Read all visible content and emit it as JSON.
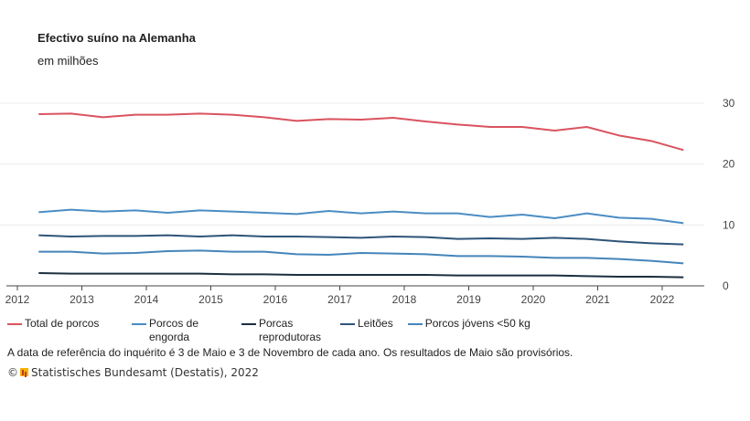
{
  "chart_data": {
    "type": "line",
    "title": "Efectivo suíno na Alemanha",
    "subtitle": "em milhões",
    "x": [
      2012.33,
      2012.83,
      2013.33,
      2013.83,
      2014.33,
      2014.83,
      2015.33,
      2015.83,
      2016.33,
      2016.83,
      2017.33,
      2017.83,
      2018.33,
      2018.83,
      2019.33,
      2019.83,
      2020.33,
      2020.83,
      2021.33,
      2021.83,
      2022.33
    ],
    "xlim": [
      2012,
      2023
    ],
    "xticks": [
      "2012",
      "2013",
      "2014",
      "2015",
      "2016",
      "2017",
      "2018",
      "2019",
      "2020",
      "2021",
      "2022"
    ],
    "ylim": [
      0,
      30
    ],
    "yticks": [
      "0",
      "10",
      "20",
      "30"
    ],
    "grid": true,
    "legend": "bottom",
    "series": [
      {
        "name": "Total de porcos",
        "color": "#d9535f",
        "values": [
          28.2,
          28.3,
          27.7,
          28.1,
          28.1,
          28.3,
          28.1,
          27.7,
          27.1,
          27.4,
          27.3,
          27.6,
          27.0,
          26.5,
          26.1,
          26.1,
          25.5,
          26.1,
          24.7,
          23.8,
          22.3
        ]
      },
      {
        "name": "Porcos de\nengorda",
        "color": "#4a8dc4",
        "values": [
          12.1,
          12.5,
          12.2,
          12.4,
          12.0,
          12.4,
          12.2,
          12.0,
          11.8,
          12.3,
          11.9,
          12.2,
          11.9,
          11.9,
          11.3,
          11.7,
          11.1,
          11.9,
          11.2,
          11.0,
          10.3
        ]
      },
      {
        "name": "Porcas\nreprodutoras",
        "color": "#1b2f40",
        "values": [
          2.1,
          2.0,
          2.0,
          2.0,
          2.0,
          2.0,
          1.9,
          1.9,
          1.8,
          1.8,
          1.8,
          1.8,
          1.8,
          1.7,
          1.7,
          1.7,
          1.7,
          1.6,
          1.5,
          1.5,
          1.4
        ]
      },
      {
        "name": "Leitões",
        "color": "#2f5478",
        "values": [
          8.3,
          8.1,
          8.2,
          8.2,
          8.3,
          8.1,
          8.3,
          8.1,
          8.1,
          8.0,
          7.9,
          8.1,
          8.0,
          7.7,
          7.8,
          7.7,
          7.9,
          7.7,
          7.3,
          7.0,
          6.8
        ]
      },
      {
        "name": "Porcos jóvens <50 kg",
        "color": "#4585ba",
        "values": [
          5.6,
          5.6,
          5.3,
          5.4,
          5.7,
          5.8,
          5.6,
          5.6,
          5.2,
          5.1,
          5.4,
          5.3,
          5.2,
          4.9,
          4.9,
          4.8,
          4.6,
          4.6,
          4.4,
          4.1,
          3.7
        ]
      }
    ]
  },
  "note": "A data de referência do inquérito é 3 de Maio e 3 de Novembro de cada ano. Os resultados de Maio são provisórios.",
  "credit": "Statistisches Bundesamt (Destatis), 2022",
  "credit_prefix": "©"
}
